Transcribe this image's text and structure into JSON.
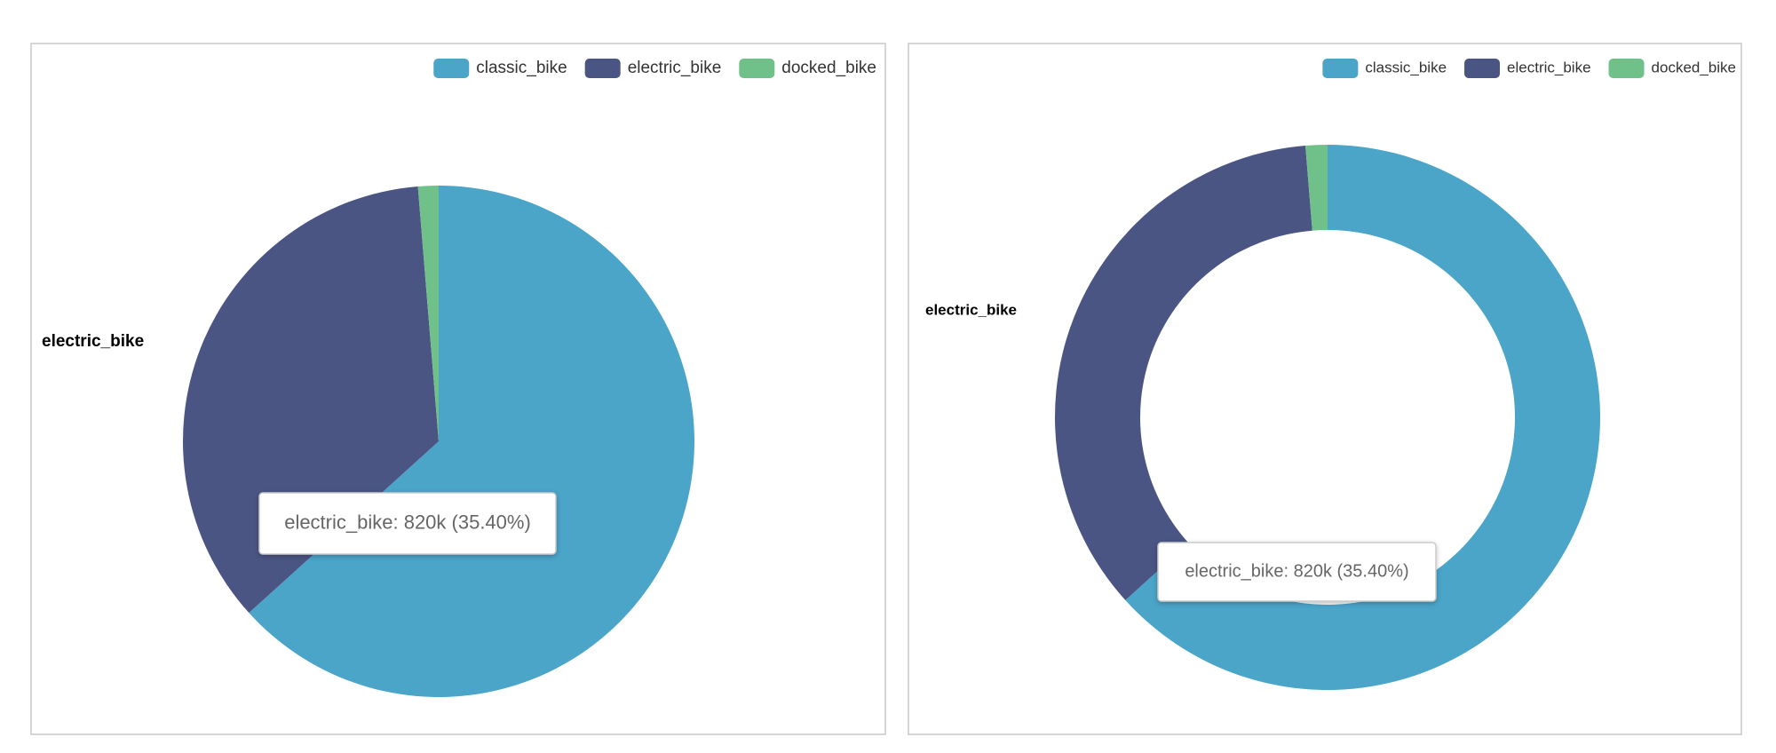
{
  "chart_data": [
    {
      "type": "pie",
      "categories": [
        "classic_bike",
        "electric_bike",
        "docked_bike"
      ],
      "values": [
        1466000,
        820000,
        30000
      ],
      "colors": [
        "#4ba5c9",
        "#4b5584",
        "#70c08a"
      ],
      "label": "electric_bike",
      "tooltip": "electric_bike: 820k (35.40%)"
    },
    {
      "type": "donut",
      "categories": [
        "classic_bike",
        "electric_bike",
        "docked_bike"
      ],
      "values": [
        1466000,
        820000,
        30000
      ],
      "colors": [
        "#4ba5c9",
        "#4b5584",
        "#70c08a"
      ],
      "label": "electric_bike",
      "tooltip": "electric_bike: 820k (35.40%)"
    }
  ]
}
